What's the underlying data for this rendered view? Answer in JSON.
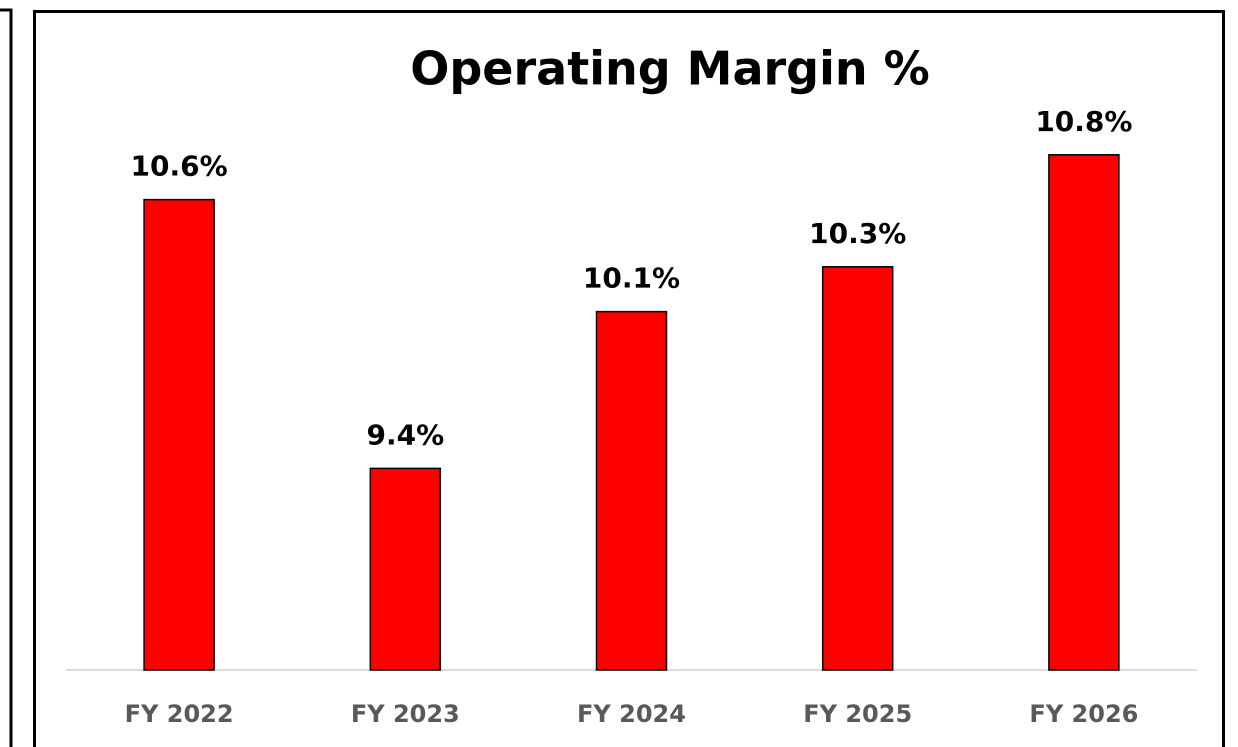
{
  "chart_data": {
    "type": "bar",
    "title": "Operating Margin %",
    "categories": [
      "FY 2022",
      "FY 2023",
      "FY 2024",
      "FY 2025",
      "FY 2026"
    ],
    "values": [
      10.6,
      9.4,
      10.1,
      10.3,
      10.8
    ],
    "value_labels": [
      "10.6%",
      "9.4%",
      "10.1%",
      "10.3%",
      "10.8%"
    ],
    "color": "#ff0000",
    "ylim": [
      8.5,
      11
    ]
  }
}
